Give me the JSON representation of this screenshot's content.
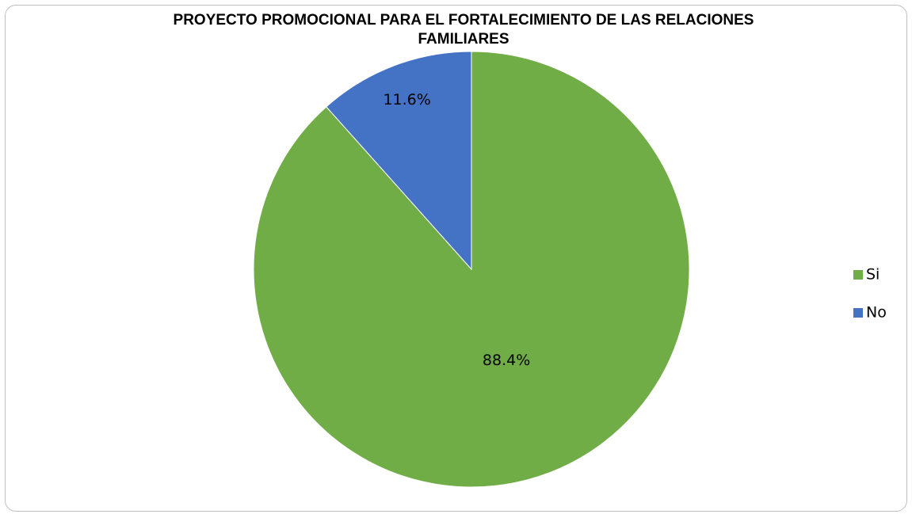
{
  "chart_data": {
    "type": "pie",
    "title": "PROYECTO PROMOCIONAL PARA EL FORTALECIMIENTO DE LAS RELACIONES FAMILIARES",
    "categories": [
      "Si",
      "No"
    ],
    "values": [
      88.4,
      11.6
    ],
    "value_labels": [
      "88.4%",
      "11.6%"
    ],
    "colors": [
      "#70ad47",
      "#4472c4"
    ],
    "legend": "right"
  }
}
